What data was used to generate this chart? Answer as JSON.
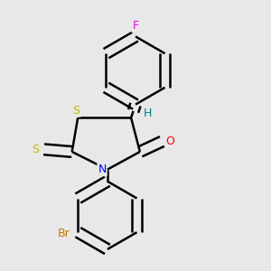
{
  "background_color": "#e8e8e8",
  "bond_color": "#000000",
  "atom_colors": {
    "F": "#ee00ee",
    "H": "#008080",
    "S": "#bbbb00",
    "N": "#0000ff",
    "O": "#ff0000",
    "Br": "#cc7700",
    "C": "#000000"
  },
  "line_width": 1.8,
  "dbo": 0.018
}
